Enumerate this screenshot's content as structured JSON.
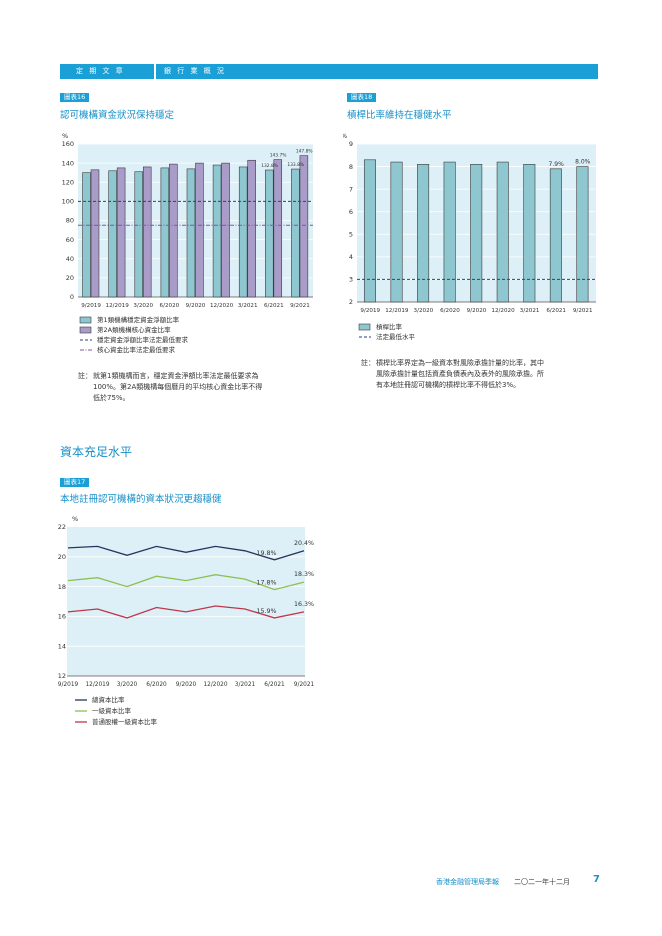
{
  "header": {
    "section": "定 期 文 章",
    "topic": "銀 行 業 概 況"
  },
  "chart16": {
    "tag": "圖表16",
    "title": "認可機構資金狀況保持穩定",
    "note_label": "註：",
    "note_lines": [
      "就第1類機構而言，穩定資金淨額比率法定最低要求為",
      "100%。第2A類機構每個曆月的平均核心資金比率不得",
      "低於75%。"
    ]
  },
  "chart18": {
    "tag": "圖表18",
    "title": "槓桿比率維持在穩健水平",
    "note_label": "註：",
    "note_lines": [
      "槓桿比率界定為一級資本對風險承擔計量的比率，其中",
      "風險承擔計量包括資產負債表內及表外的風險承擔。所",
      "有本地註冊認可機構的槓桿比率不得低於3%。"
    ]
  },
  "section_heading": "資本充足水平",
  "chart17": {
    "tag": "圖表17",
    "title": "本地註冊認可機構的資本狀況更趨穩健"
  },
  "chart_data": [
    {
      "type": "bar",
      "id": "chart16",
      "unit_label": "%",
      "categories": [
        "9/2019",
        "12/2019",
        "3/2020",
        "6/2020",
        "9/2020",
        "12/2020",
        "3/2021",
        "6/2021",
        "9/2021"
      ],
      "series": [
        {
          "name": "第1類機構穩定資金淨額比率",
          "values": [
            130,
            132,
            131,
            135,
            134,
            138,
            136,
            132.8,
            133.8
          ]
        },
        {
          "name": "第2A類機構核心資金比率",
          "values": [
            133,
            135,
            136,
            139,
            140,
            140,
            143,
            143.7,
            147.8
          ]
        }
      ],
      "reference_lines": [
        {
          "name": "穩定資金淨額比率法定最低要求",
          "value": 100
        },
        {
          "name": "核心資金比率法定最低要求",
          "value": 75
        }
      ],
      "data_labels": {
        "7": [
          "132.8%",
          "143.7%"
        ],
        "8": [
          "133.8%",
          "147.8%"
        ]
      },
      "ylim": [
        0,
        160
      ],
      "yticks": [
        0,
        20,
        40,
        60,
        80,
        100,
        120,
        140,
        160
      ],
      "colors": {
        "series1": "#8ec7cf",
        "series2": "#a99cc8",
        "ref1": "#2b3f8c",
        "ref2": "#7a5aa0",
        "bg": "#ddf0f8"
      }
    },
    {
      "type": "bar",
      "id": "chart18",
      "unit_label": "%",
      "categories": [
        "9/2019",
        "12/2019",
        "3/2020",
        "6/2020",
        "9/2020",
        "12/2020",
        "3/2021",
        "6/2021",
        "9/2021"
      ],
      "series": [
        {
          "name": "槓桿比率",
          "values": [
            8.3,
            8.2,
            8.1,
            8.2,
            8.1,
            8.2,
            8.1,
            7.9,
            8.0
          ]
        }
      ],
      "reference_lines": [
        {
          "name": "法定最低水平",
          "value": 3
        }
      ],
      "data_labels": {
        "7": [
          "7.9%"
        ],
        "8": [
          "8.0%"
        ]
      },
      "ylim": [
        2,
        9
      ],
      "yticks": [
        2,
        3,
        4,
        5,
        6,
        7,
        8,
        9
      ],
      "colors": {
        "series1": "#8ec7cf",
        "ref1": "#2b3f8c",
        "bg": "#ddf0f8"
      }
    },
    {
      "type": "line",
      "id": "chart17",
      "unit_label": "%",
      "categories": [
        "9/2019",
        "12/2019",
        "3/2020",
        "6/2020",
        "9/2020",
        "12/2020",
        "3/2021",
        "6/2021",
        "9/2021"
      ],
      "series": [
        {
          "name": "總資本比率",
          "values": [
            20.6,
            20.7,
            20.1,
            20.7,
            20.3,
            20.7,
            20.4,
            19.8,
            20.4
          ],
          "color": "#27355e"
        },
        {
          "name": "一級資本比率",
          "values": [
            18.4,
            18.6,
            18.0,
            18.7,
            18.4,
            18.8,
            18.5,
            17.8,
            18.3
          ],
          "color": "#8cc152"
        },
        {
          "name": "普通股權一級資本比率",
          "values": [
            16.3,
            16.5,
            15.9,
            16.6,
            16.3,
            16.7,
            16.5,
            15.9,
            16.3
          ],
          "color": "#c0354a"
        }
      ],
      "data_labels": [
        {
          "series": 0,
          "index": 7,
          "text": "19.8%"
        },
        {
          "series": 0,
          "index": 8,
          "text": "20.4%"
        },
        {
          "series": 1,
          "index": 7,
          "text": "17.8%"
        },
        {
          "series": 1,
          "index": 8,
          "text": "18.3%"
        },
        {
          "series": 2,
          "index": 7,
          "text": "15.9%"
        },
        {
          "series": 2,
          "index": 8,
          "text": "16.3%"
        }
      ],
      "ylim": [
        12,
        22
      ],
      "yticks": [
        12,
        14,
        16,
        18,
        20,
        22
      ],
      "colors": {
        "bg": "#ddf0f8"
      }
    }
  ],
  "footer": {
    "publisher": "香港金融管理局季報",
    "date": "二〇二一年十二月",
    "page": "7"
  }
}
